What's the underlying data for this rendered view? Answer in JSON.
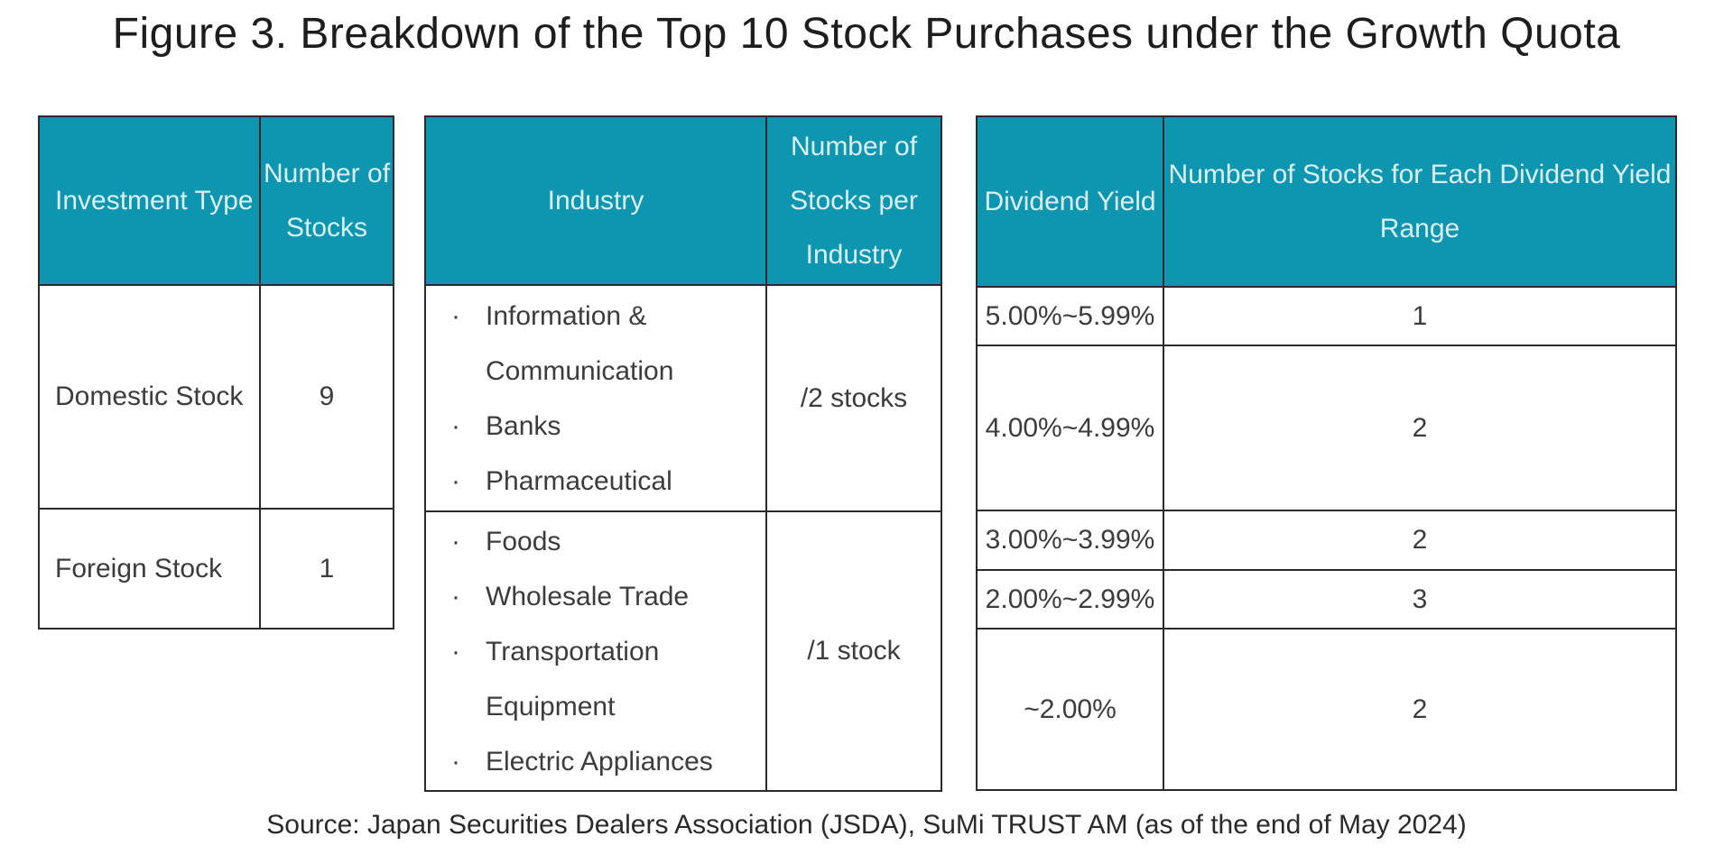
{
  "title": "Figure 3. Breakdown of the Top 10 Stock Purchases under the Growth Quota",
  "source": "Source: Japan Securities Dealers Association (JSDA), SuMi TRUST AM (as of the end of May 2024)",
  "colors": {
    "header_bg": "#0e96b0",
    "header_text": "#d8f0f6",
    "body_text": "#3c3c3c",
    "border": "#2b2b2b"
  },
  "bullet": "·",
  "tables": {
    "investment": {
      "col_headers": {
        "type": "Investment Type",
        "count": "Number of Stocks"
      },
      "rows": [
        {
          "type": "Domestic Stock",
          "count": "9"
        },
        {
          "type": "Foreign Stock",
          "count": "1"
        }
      ]
    },
    "industry": {
      "col_headers": {
        "industry": "Industry",
        "count": "Number of Stocks per Industry"
      },
      "rows": [
        {
          "items": [
            "Information & Communication",
            "Banks",
            "Pharmaceutical"
          ],
          "count": "/2 stocks"
        },
        {
          "items": [
            "Foods",
            "Wholesale Trade",
            "Transportation Equipment",
            "Electric Appliances"
          ],
          "count": "/1 stock"
        }
      ]
    },
    "dividend": {
      "col_headers": {
        "yield": "Dividend Yield",
        "count": "Number of Stocks for Each Dividend Yield Range"
      },
      "rows": [
        {
          "range": "5.00%~5.99%",
          "count": "1"
        },
        {
          "range": "4.00%~4.99%",
          "count": "2"
        },
        {
          "range": "3.00%~3.99%",
          "count": "2"
        },
        {
          "range": "2.00%~2.99%",
          "count": "3"
        },
        {
          "range": "~2.00%",
          "count": "2"
        }
      ]
    }
  }
}
